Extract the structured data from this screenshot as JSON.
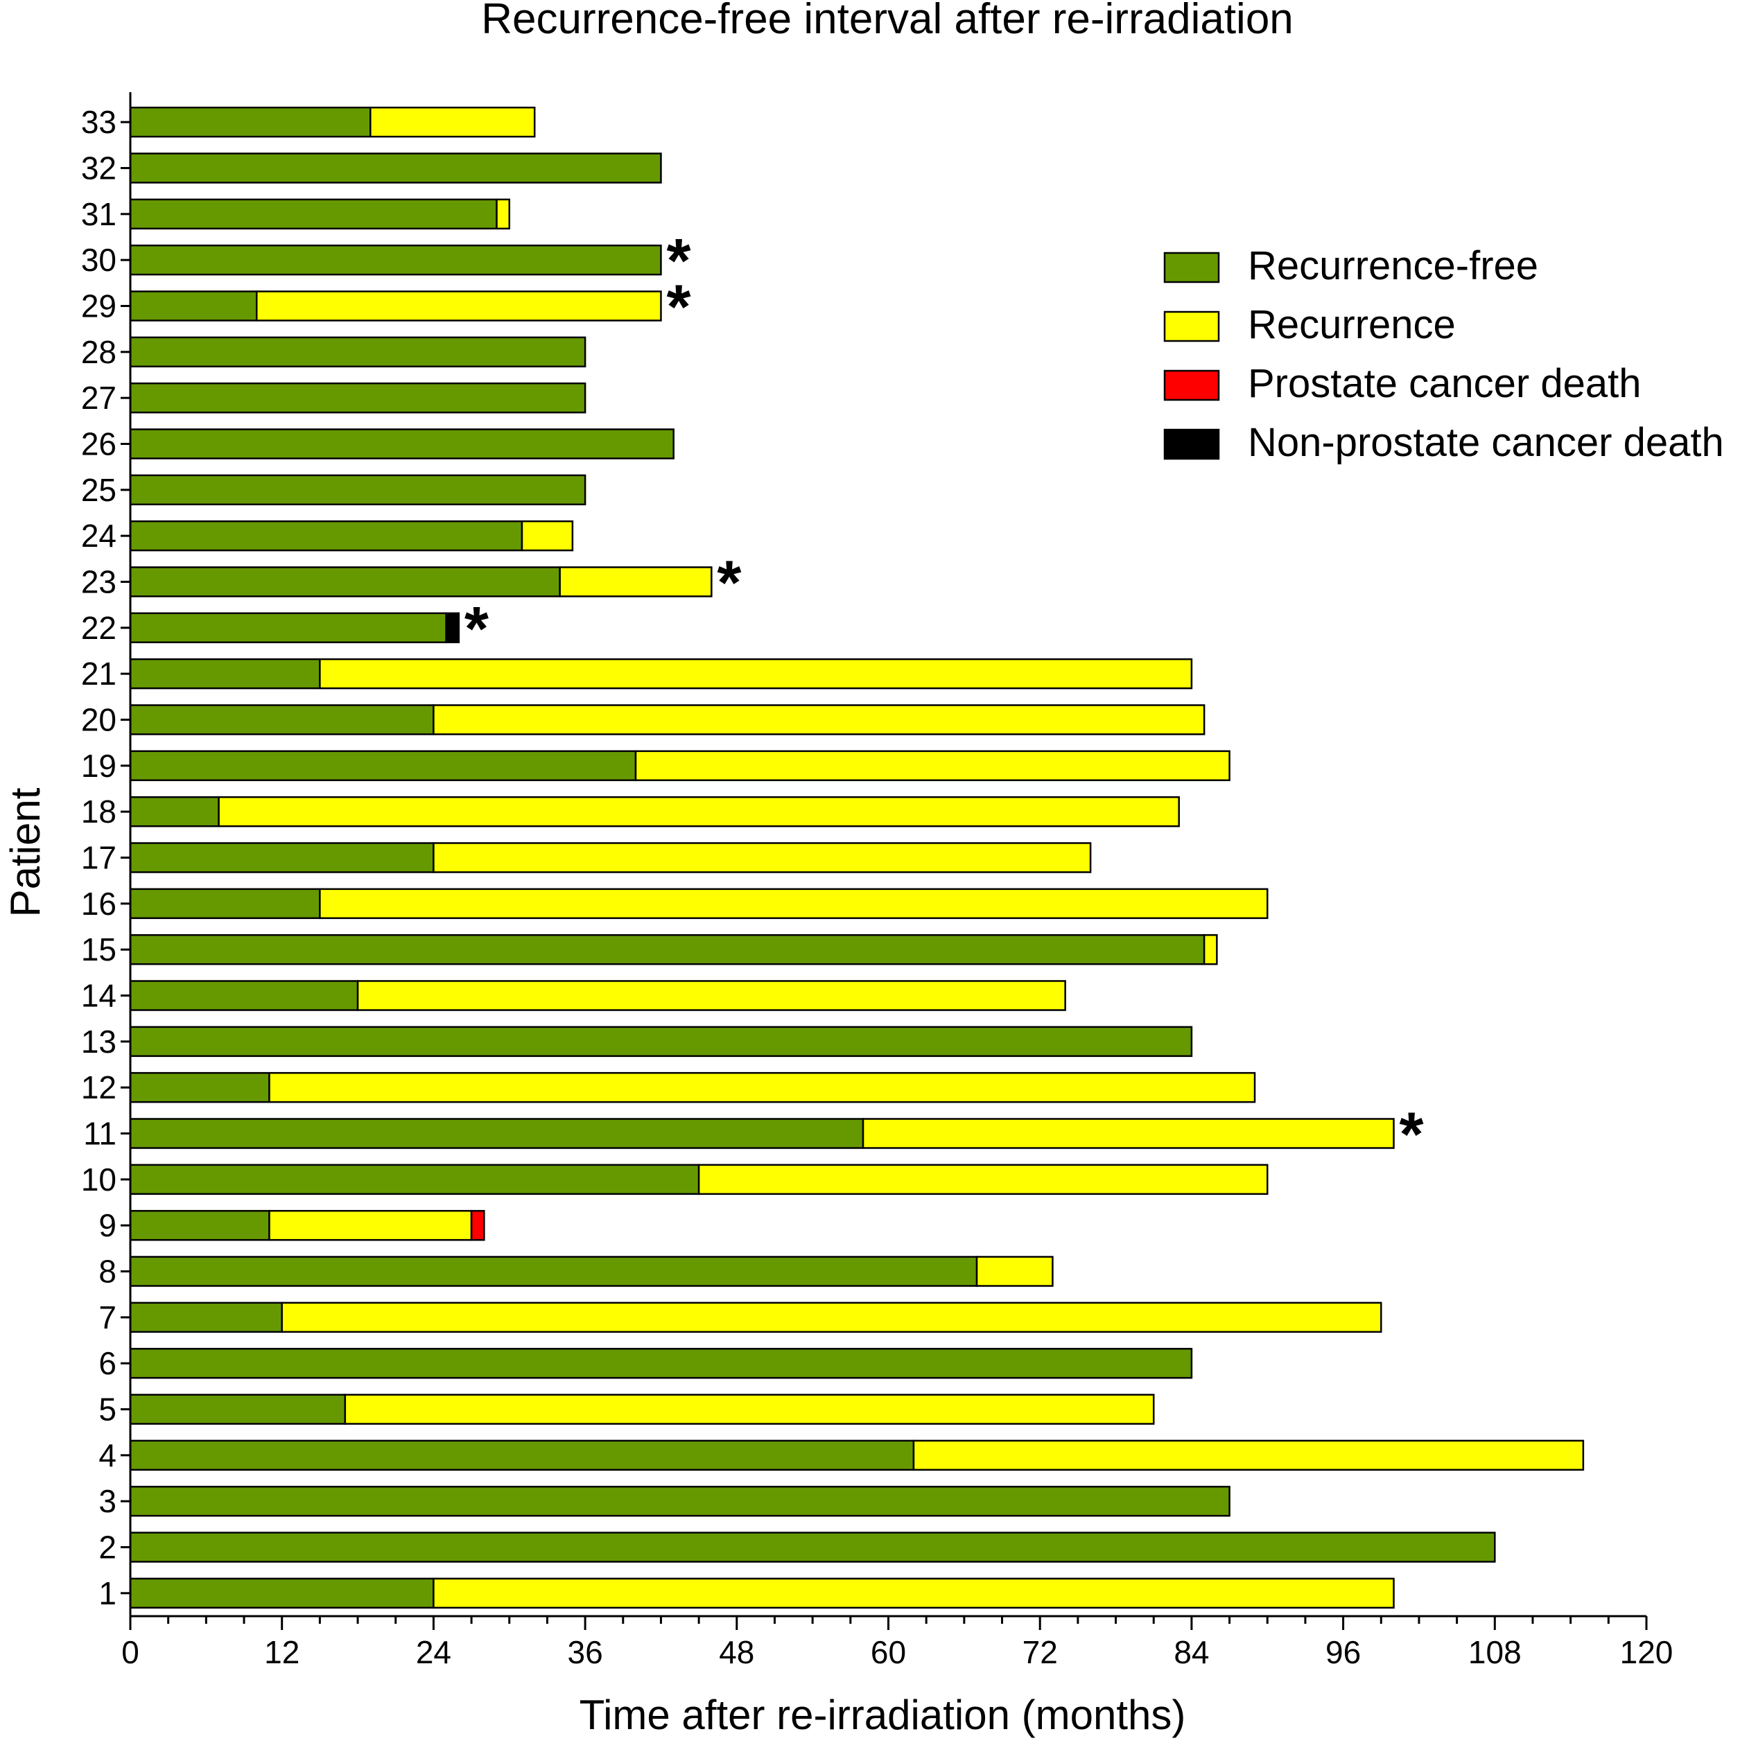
{
  "chart_data": {
    "type": "bar",
    "orientation": "horizontal",
    "stacked": true,
    "title": "Recurrence-free interval after re-irradiation",
    "xlabel": "Time after re-irradiation (months)",
    "ylabel": "Patient",
    "xlim": [
      0,
      120
    ],
    "xticks": [
      "0",
      "12",
      "24",
      "36",
      "48",
      "60",
      "72",
      "84",
      "96",
      "108",
      "120"
    ],
    "categories": [
      "1",
      "2",
      "3",
      "4",
      "5",
      "6",
      "7",
      "8",
      "9",
      "10",
      "11",
      "12",
      "13",
      "14",
      "15",
      "16",
      "17",
      "18",
      "19",
      "20",
      "21",
      "22",
      "23",
      "24",
      "25",
      "26",
      "27",
      "28",
      "29",
      "30",
      "31",
      "32",
      "33"
    ],
    "series": [
      {
        "name": "Recurrence-free",
        "color": "#669900",
        "values": [
          24,
          108,
          87,
          62,
          17,
          84,
          12,
          67,
          11,
          45,
          58,
          11,
          84,
          18,
          85,
          15,
          24,
          7,
          40,
          24,
          15,
          25,
          34,
          31,
          36,
          43,
          36,
          36,
          10,
          42,
          29,
          42,
          19
        ]
      },
      {
        "name": "Recurrence",
        "color": "#ffff00",
        "values": [
          76,
          0,
          0,
          53,
          64,
          0,
          87,
          6,
          16,
          45,
          42,
          78,
          0,
          56,
          1,
          75,
          52,
          76,
          47,
          61,
          69,
          0,
          12,
          4,
          0,
          0,
          0,
          0,
          32,
          0,
          1,
          0,
          13
        ]
      },
      {
        "name": "Prostate cancer death",
        "color": "#ff0000",
        "values": [
          0,
          0,
          0,
          0,
          0,
          0,
          0,
          0,
          1,
          0,
          0,
          0,
          0,
          0,
          0,
          0,
          0,
          0,
          0,
          0,
          0,
          0,
          0,
          0,
          0,
          0,
          0,
          0,
          0,
          0,
          0,
          0,
          0
        ]
      },
      {
        "name": "Non-prostate cancer death",
        "color": "#000000",
        "values": [
          0,
          0,
          0,
          0,
          0,
          0,
          0,
          0,
          0,
          0,
          0,
          0,
          0,
          0,
          0,
          0,
          0,
          0,
          0,
          0,
          0,
          1,
          0,
          0,
          0,
          0,
          0,
          0,
          0,
          0,
          0,
          0,
          0
        ]
      }
    ],
    "asterisk_symbol": "*",
    "asterisk_patients": [
      "11",
      "22",
      "23",
      "29",
      "30"
    ],
    "legend_position": "top-right"
  }
}
